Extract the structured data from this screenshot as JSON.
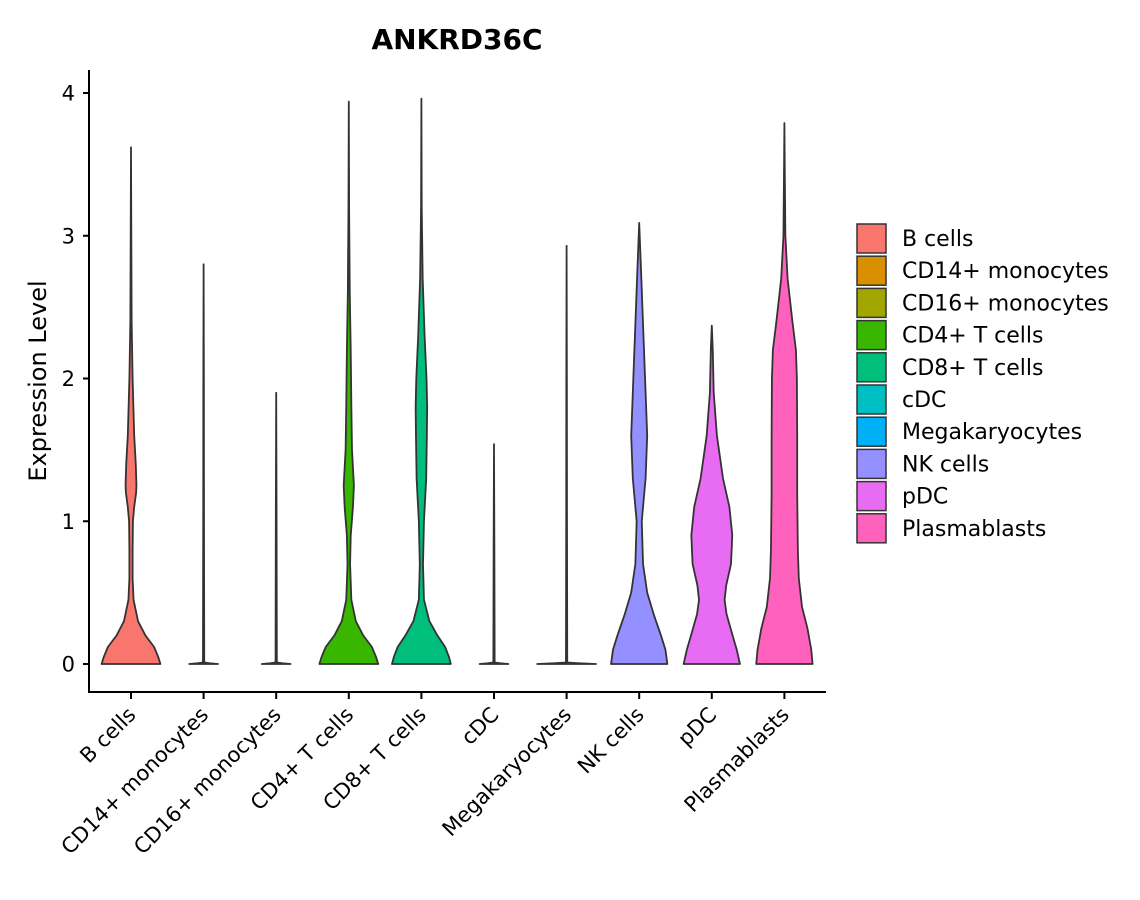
{
  "chart_data": {
    "type": "violin",
    "title": "ANKRD36C",
    "xlabel": "",
    "ylabel": "Expression Level",
    "ylim": [
      -0.15,
      4.15
    ],
    "yticks": [
      0,
      1,
      2,
      3,
      4
    ],
    "categories": [
      "B cells",
      "CD14+ monocytes",
      "CD16+ monocytes",
      "CD4+ T cells",
      "CD8+ T cells",
      "cDC",
      "Megakaryocytes",
      "NK cells",
      "pDC",
      "Plasmablasts"
    ],
    "colors": [
      "#F8766D",
      "#D89000",
      "#A3A500",
      "#39B600",
      "#00BF7D",
      "#00BFC4",
      "#00B0F6",
      "#9590FF",
      "#E76BF3",
      "#FF62BC"
    ],
    "max_values": [
      3.62,
      2.8,
      1.9,
      3.94,
      3.96,
      1.54,
      2.93,
      3.09,
      2.37,
      3.79
    ],
    "density_profiles": [
      [
        [
          0,
          0.92
        ],
        [
          0.05,
          0.85
        ],
        [
          0.12,
          0.72
        ],
        [
          0.2,
          0.45
        ],
        [
          0.3,
          0.22
        ],
        [
          0.45,
          0.08
        ],
        [
          0.6,
          0.05
        ],
        [
          0.8,
          0.05
        ],
        [
          1.0,
          0.06
        ],
        [
          1.1,
          0.1
        ],
        [
          1.2,
          0.16
        ],
        [
          1.25,
          0.17
        ],
        [
          1.4,
          0.15
        ],
        [
          1.6,
          0.1
        ],
        [
          2.0,
          0.05
        ],
        [
          2.4,
          0.02
        ],
        [
          3.0,
          0.01
        ],
        [
          3.62,
          0
        ]
      ],
      [
        [
          0,
          0.45
        ],
        [
          0.005,
          0.2
        ],
        [
          0.01,
          0.02
        ],
        [
          1.0,
          0.012
        ],
        [
          2.0,
          0.008
        ],
        [
          2.8,
          0
        ]
      ],
      [
        [
          0,
          0.45
        ],
        [
          0.005,
          0.2
        ],
        [
          0.01,
          0.02
        ],
        [
          1.0,
          0.012
        ],
        [
          1.9,
          0
        ]
      ],
      [
        [
          0,
          0.92
        ],
        [
          0.05,
          0.85
        ],
        [
          0.12,
          0.72
        ],
        [
          0.2,
          0.45
        ],
        [
          0.3,
          0.22
        ],
        [
          0.45,
          0.08
        ],
        [
          0.7,
          0.04
        ],
        [
          0.9,
          0.06
        ],
        [
          1.1,
          0.13
        ],
        [
          1.25,
          0.16
        ],
        [
          1.5,
          0.1
        ],
        [
          1.8,
          0.08
        ],
        [
          2.2,
          0.06
        ],
        [
          2.6,
          0.03
        ],
        [
          3.2,
          0.01
        ],
        [
          3.94,
          0
        ]
      ],
      [
        [
          0,
          0.92
        ],
        [
          0.05,
          0.86
        ],
        [
          0.12,
          0.74
        ],
        [
          0.2,
          0.5
        ],
        [
          0.3,
          0.25
        ],
        [
          0.45,
          0.08
        ],
        [
          0.7,
          0.05
        ],
        [
          1.0,
          0.08
        ],
        [
          1.3,
          0.15
        ],
        [
          1.6,
          0.17
        ],
        [
          1.8,
          0.18
        ],
        [
          2.0,
          0.16
        ],
        [
          2.3,
          0.1
        ],
        [
          2.7,
          0.04
        ],
        [
          3.2,
          0.01
        ],
        [
          3.96,
          0
        ]
      ],
      [
        [
          0,
          0.45
        ],
        [
          0.005,
          0.2
        ],
        [
          0.01,
          0.02
        ],
        [
          0.8,
          0.012
        ],
        [
          1.54,
          0
        ]
      ],
      [
        [
          0,
          0.92
        ],
        [
          0.005,
          0.4
        ],
        [
          0.01,
          0.02
        ],
        [
          1.0,
          0.012
        ],
        [
          2.0,
          0.008
        ],
        [
          2.93,
          0
        ]
      ],
      [
        [
          0,
          0.88
        ],
        [
          0.1,
          0.82
        ],
        [
          0.2,
          0.68
        ],
        [
          0.35,
          0.45
        ],
        [
          0.5,
          0.25
        ],
        [
          0.7,
          0.12
        ],
        [
          1.0,
          0.08
        ],
        [
          1.3,
          0.2
        ],
        [
          1.6,
          0.25
        ],
        [
          1.9,
          0.2
        ],
        [
          2.2,
          0.15
        ],
        [
          2.5,
          0.1
        ],
        [
          2.8,
          0.05
        ],
        [
          3.09,
          0
        ]
      ],
      [
        [
          0,
          0.88
        ],
        [
          0.1,
          0.78
        ],
        [
          0.2,
          0.65
        ],
        [
          0.35,
          0.46
        ],
        [
          0.45,
          0.4
        ],
        [
          0.55,
          0.45
        ],
        [
          0.7,
          0.6
        ],
        [
          0.9,
          0.64
        ],
        [
          1.1,
          0.55
        ],
        [
          1.3,
          0.35
        ],
        [
          1.6,
          0.16
        ],
        [
          1.9,
          0.06
        ],
        [
          2.2,
          0.03
        ],
        [
          2.37,
          0
        ]
      ],
      [
        [
          0,
          0.88
        ],
        [
          0.1,
          0.84
        ],
        [
          0.25,
          0.72
        ],
        [
          0.4,
          0.55
        ],
        [
          0.6,
          0.45
        ],
        [
          0.8,
          0.42
        ],
        [
          1.2,
          0.4
        ],
        [
          1.6,
          0.4
        ],
        [
          2.0,
          0.39
        ],
        [
          2.2,
          0.36
        ],
        [
          2.4,
          0.25
        ],
        [
          2.7,
          0.1
        ],
        [
          3.0,
          0.03
        ],
        [
          3.5,
          0.01
        ],
        [
          3.79,
          0
        ]
      ]
    ]
  }
}
